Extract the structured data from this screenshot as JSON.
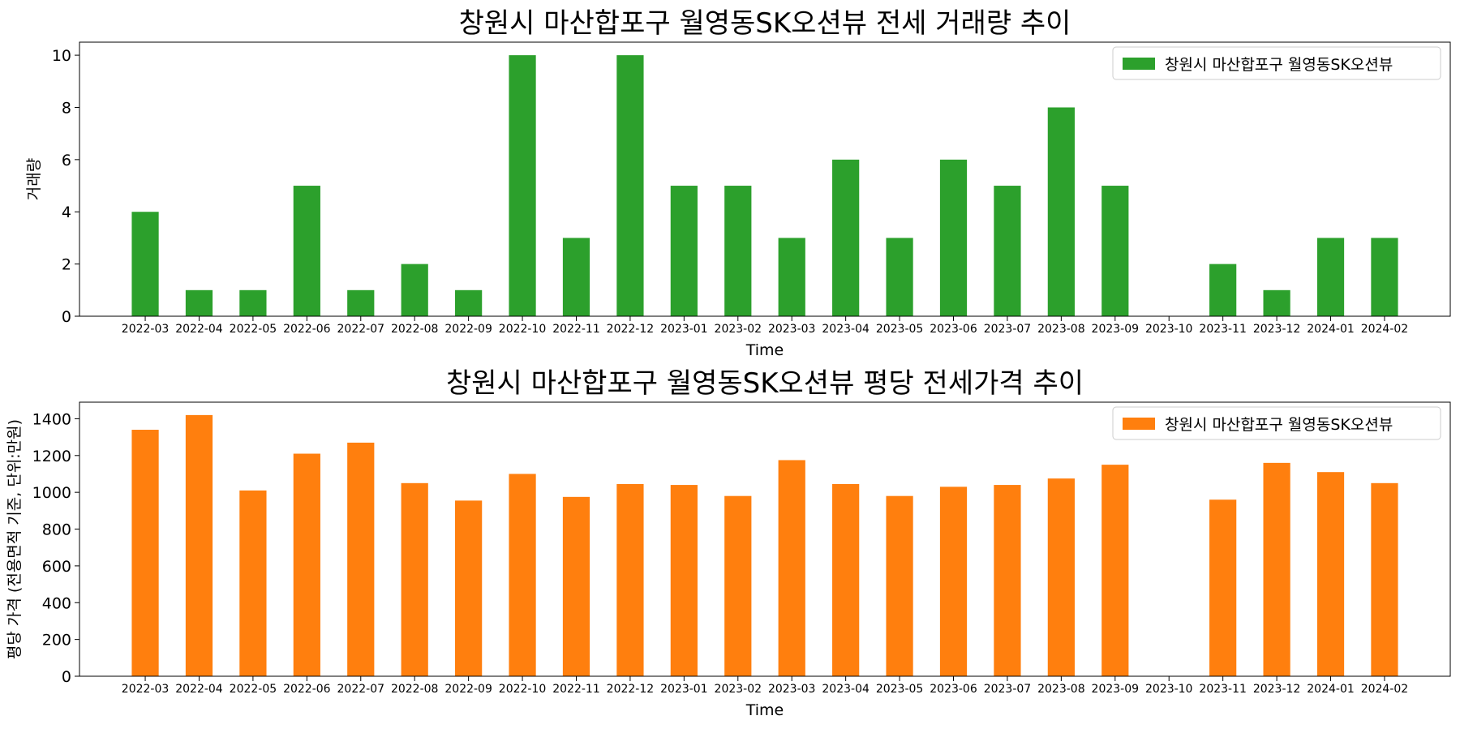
{
  "chart_data": [
    {
      "type": "bar",
      "title": "창원시 마산합포구 월영동SK오션뷰 전세 거래량 추이",
      "xlabel": "Time",
      "ylabel": "거래량",
      "ylim": [
        0,
        10.5
      ],
      "yticks": [
        0,
        2,
        4,
        6,
        8,
        10
      ],
      "grid": false,
      "legend_position": "top-right",
      "color": "#2ca02c",
      "categories": [
        "2022-03",
        "2022-04",
        "2022-05",
        "2022-06",
        "2022-07",
        "2022-08",
        "2022-09",
        "2022-10",
        "2022-11",
        "2022-12",
        "2023-01",
        "2023-02",
        "2023-03",
        "2023-04",
        "2023-05",
        "2023-06",
        "2023-07",
        "2023-08",
        "2023-09",
        "2023-10",
        "2023-11",
        "2023-12",
        "2024-01",
        "2024-02"
      ],
      "series": [
        {
          "name": "창원시 마산합포구 월영동SK오션뷰",
          "values": [
            4,
            1,
            1,
            5,
            1,
            2,
            1,
            10,
            3,
            10,
            5,
            5,
            3,
            6,
            3,
            6,
            5,
            8,
            5,
            0,
            2,
            1,
            3,
            3
          ]
        }
      ]
    },
    {
      "type": "bar",
      "title": "창원시 마산합포구 월영동SK오션뷰 평당 전세가격 추이",
      "xlabel": "Time",
      "ylabel": "평당 가격 (전용면적 기준, 단위:만원)",
      "ylim": [
        0,
        1490
      ],
      "yticks": [
        0,
        200,
        400,
        600,
        800,
        1000,
        1200,
        1400
      ],
      "grid": false,
      "legend_position": "top-right",
      "color": "#ff7f0e",
      "categories": [
        "2022-03",
        "2022-04",
        "2022-05",
        "2022-06",
        "2022-07",
        "2022-08",
        "2022-09",
        "2022-10",
        "2022-11",
        "2022-12",
        "2023-01",
        "2023-02",
        "2023-03",
        "2023-04",
        "2023-05",
        "2023-06",
        "2023-07",
        "2023-08",
        "2023-09",
        "2023-10",
        "2023-11",
        "2023-12",
        "2024-01",
        "2024-02"
      ],
      "series": [
        {
          "name": "창원시 마산합포구 월영동SK오션뷰",
          "values": [
            1340,
            1420,
            1010,
            1210,
            1270,
            1050,
            955,
            1100,
            975,
            1045,
            1040,
            980,
            1175,
            1045,
            980,
            1030,
            1040,
            1075,
            1150,
            null,
            960,
            1160,
            1110,
            1050
          ]
        }
      ]
    }
  ]
}
